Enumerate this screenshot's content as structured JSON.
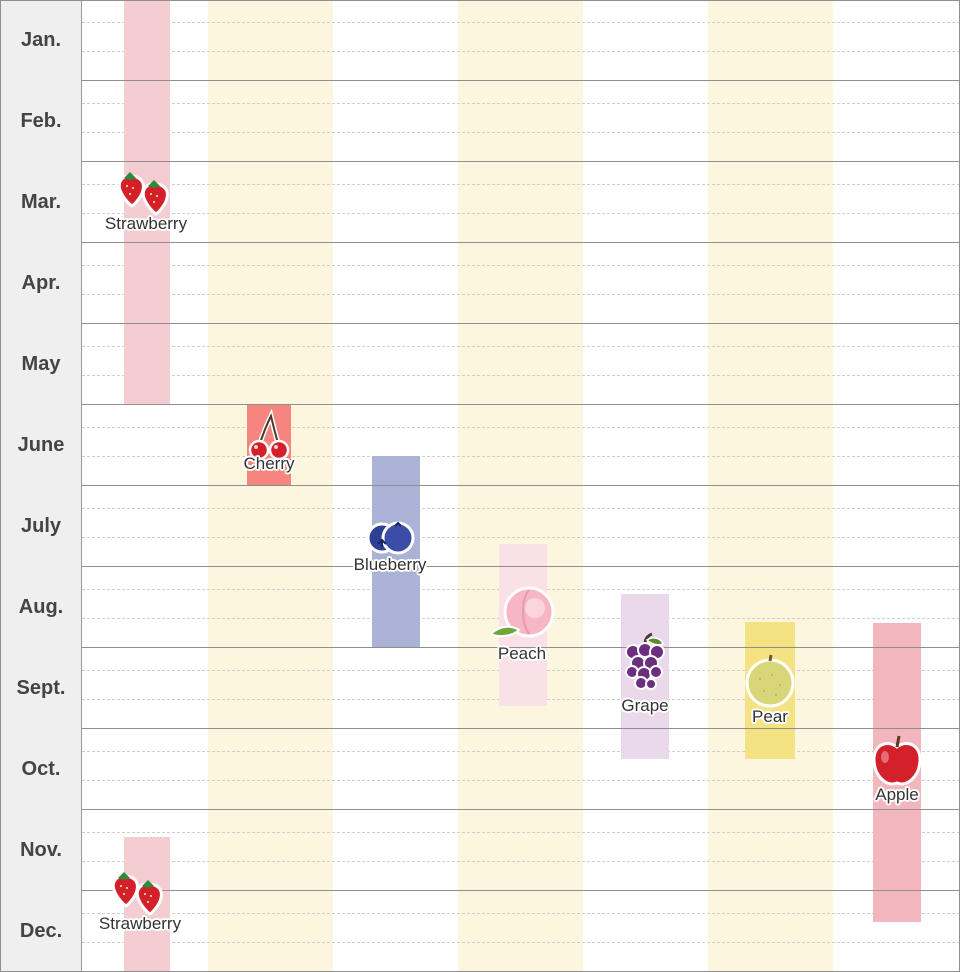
{
  "months": [
    "Jan.",
    "Feb.",
    "Mar.",
    "Apr.",
    "May",
    "June",
    "July",
    "Aug.",
    "Sept.",
    "Oct.",
    "Nov.",
    "Dec."
  ],
  "fruits": {
    "strawberry_spring": {
      "label": "Strawberry",
      "icon": "strawberry-icon",
      "color": "#f4cdd2"
    },
    "cherry": {
      "label": "Cherry",
      "icon": "cherry-icon",
      "color": "#f5857e"
    },
    "blueberry": {
      "label": "Blueberry",
      "icon": "blueberry-icon",
      "color": "#aab3d6"
    },
    "peach": {
      "label": "Peach",
      "icon": "peach-icon",
      "color": "#f9e1e7"
    },
    "grape": {
      "label": "Grape",
      "icon": "grape-icon",
      "color": "#ead9ea"
    },
    "pear": {
      "label": "Pear",
      "icon": "pear-icon",
      "color": "#f5e283"
    },
    "apple": {
      "label": "Apple",
      "icon": "apple-icon",
      "color": "#f3b6bf"
    },
    "strawberry_winter": {
      "label": "Strawberry",
      "icon": "strawberry-icon",
      "color": "#f4cdd2"
    }
  },
  "colors": {
    "stripe": "#fdf6df",
    "month_column": "#efefef"
  }
}
